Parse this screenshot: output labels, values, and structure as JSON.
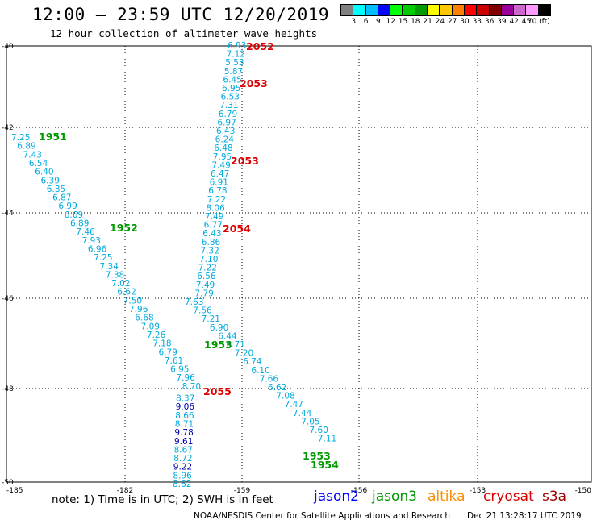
{
  "header": {
    "title": "12:00 — 23:59 UTC 12/20/2019",
    "subtitle": "12 hour collection of altimeter wave heights"
  },
  "colorbar": {
    "colors": [
      "#808080",
      "#00ffff",
      "#00bfff",
      "#0000ff",
      "#00ff00",
      "#00cc00",
      "#009900",
      "#ffff00",
      "#ffc800",
      "#ff8000",
      "#ff0000",
      "#c80000",
      "#800000",
      "#990099",
      "#cc66cc",
      "#ff99ff",
      "#000000"
    ],
    "labels": [
      "3",
      "6",
      "9",
      "12",
      "15",
      "18",
      "21",
      "24",
      "27",
      "30",
      "33",
      "36",
      "39",
      "42",
      "45",
      "70 (ft)"
    ],
    "label_positions": [
      1,
      2,
      3,
      4,
      5,
      6,
      7,
      8,
      9,
      10,
      11,
      12,
      13,
      14,
      15,
      16
    ]
  },
  "map": {
    "lat_labels": [
      "-40",
      "-42",
      "-44",
      "-46",
      "-48",
      "-50"
    ],
    "lon_labels": [
      "-185",
      "-182",
      "-159",
      "-156",
      "-153",
      "-150"
    ],
    "colors": {
      "jason3": "#009900",
      "cryosat": "#dd0000",
      "swh_cyan": "#00aadd",
      "swh_blue": "#0000aa"
    },
    "track_a": {
      "values": [
        "6.93",
        "7.12",
        "5.53",
        "5.87",
        "6.45",
        "6.95",
        "6.53",
        "7.31",
        "6.79",
        "6.97",
        "6.43",
        "6.24",
        "6.48",
        "7.95",
        "7.49",
        "6.47",
        "6.91",
        "6.78",
        "7.22",
        "8.06",
        "7.49",
        "6.77",
        "6.43",
        "6.86",
        "7.32",
        "7.10",
        "7.22",
        "6.56",
        "7.49",
        "7.79",
        "7.63",
        "7.56",
        "7.21",
        "6.90",
        "6.44",
        "6.71",
        "7.20",
        "6.74",
        "6.10",
        "7.66",
        "6.62",
        "7.08",
        "7.47",
        "7.44",
        "7.05",
        "7.60",
        "7.11"
      ],
      "time_labels": [
        {
          "text": "2052",
          "sat": "cryosat"
        },
        {
          "text": "2053",
          "sat": "cryosat"
        },
        {
          "text": "2053",
          "sat": "cryosat"
        },
        {
          "text": "2054",
          "sat": "cryosat"
        },
        {
          "text": "2055",
          "sat": "cryosat"
        },
        {
          "text": "1953",
          "sat": "jason3"
        },
        {
          "text": "1954",
          "sat": "jason3"
        }
      ]
    },
    "track_b": {
      "values": [
        "7.25",
        "6.89",
        "7.43",
        "6.54",
        "6.40",
        "6.39",
        "6.35",
        "6.87",
        "6.99",
        "6.69",
        "6.89",
        "7.46",
        "7.93",
        "6.96",
        "7.25",
        "7.34",
        "7.38",
        "7.02",
        "6.62",
        "7.50",
        "7.96",
        "6.68",
        "7.09",
        "7.26",
        "7.18",
        "6.79",
        "7.61",
        "6.95",
        "7.96",
        "8.70",
        "8.37",
        "9.06",
        "8.66",
        "8.71",
        "9.78",
        "9.61",
        "8.67",
        "8.72",
        "9.22",
        "8.96",
        "8.62"
      ],
      "time_labels": [
        {
          "text": "1951",
          "sat": "jason3"
        },
        {
          "text": "1952",
          "sat": "jason3"
        },
        {
          "text": "1953",
          "sat": "jason3"
        }
      ]
    }
  },
  "footer": {
    "note": "note: 1) Time is in UTC; 2) SWH is in feet",
    "legend": [
      {
        "name": "jason2",
        "color": "#0000ff"
      },
      {
        "name": "jason3",
        "color": "#009900"
      },
      {
        "name": "altika",
        "color": "#ff8c00"
      },
      {
        "name": "cryosat",
        "color": "#dd0000"
      },
      {
        "name": "s3a",
        "color": "#990000"
      }
    ],
    "credit": "NOAA/NESDIS Center for Satellite Applications and Research",
    "generated": "Dec 21 13:28:17 UTC 2019"
  }
}
